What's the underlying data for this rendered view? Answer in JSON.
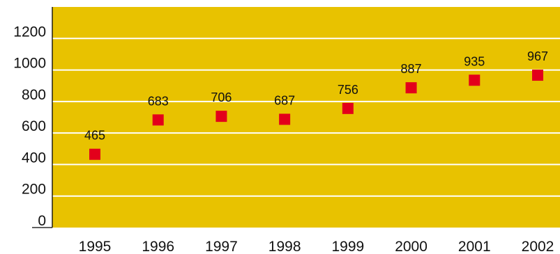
{
  "chart_data": {
    "type": "scatter",
    "title": "",
    "xlabel": "",
    "ylabel": "",
    "categories": [
      "1995",
      "1996",
      "1997",
      "1998",
      "1999",
      "2000",
      "2001",
      "2002"
    ],
    "values": [
      465,
      683,
      706,
      687,
      756,
      887,
      935,
      967
    ],
    "value_labels": [
      "465",
      "683",
      "706",
      "687",
      "756",
      "887",
      "935",
      "967"
    ],
    "y_ticks": [
      0,
      200,
      400,
      600,
      800,
      1000,
      1200
    ],
    "y_tick_labels": [
      "0",
      "200",
      "400",
      "600",
      "800",
      "1000",
      "1200"
    ],
    "ylim": [
      0,
      1400
    ],
    "grid": "horizontal",
    "legend": "none",
    "colors": {
      "plot_background": "#e8c200",
      "marker": "#e3001b",
      "gridline": "#ffffff",
      "axis": "#000000"
    },
    "marker_shape": "square"
  }
}
